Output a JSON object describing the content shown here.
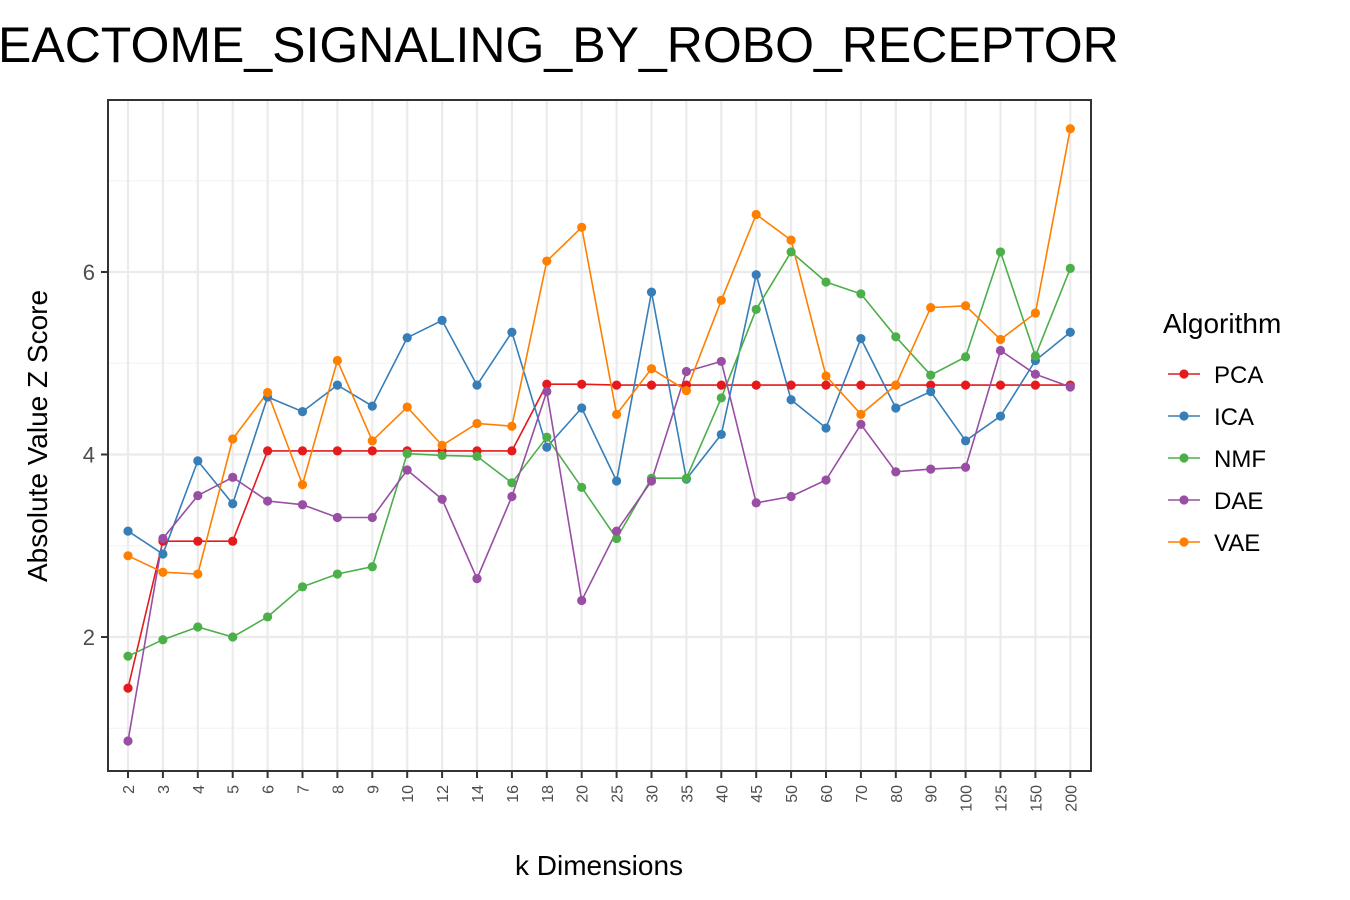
{
  "chart_data": {
    "type": "line",
    "title": "EACTOME_SIGNALING_BY_ROBO_RECEPTOR",
    "xlabel": "k Dimensions",
    "ylabel": "Absolute Value Z Score",
    "categories": [
      "2",
      "3",
      "4",
      "5",
      "6",
      "7",
      "8",
      "9",
      "10",
      "12",
      "14",
      "16",
      "18",
      "20",
      "25",
      "30",
      "35",
      "40",
      "45",
      "50",
      "60",
      "70",
      "80",
      "90",
      "100",
      "125",
      "150",
      "200"
    ],
    "y_ticks": [
      "2",
      "4",
      "6"
    ],
    "ylim": [
      0.7,
      7.9
    ],
    "grid": true,
    "legend": {
      "title": "Algorithm",
      "position": "right"
    },
    "series": [
      {
        "name": "PCA",
        "color": "#e41a1c",
        "values": [
          1.44,
          3.05,
          3.05,
          3.05,
          4.04,
          4.04,
          4.04,
          4.04,
          4.04,
          4.04,
          4.04,
          4.04,
          4.77,
          4.77,
          4.76,
          4.76,
          4.76,
          4.76,
          4.76,
          4.76,
          4.76,
          4.76,
          4.76,
          4.76,
          4.76,
          4.76,
          4.76,
          4.76
        ]
      },
      {
        "name": "ICA",
        "color": "#377eb8",
        "values": [
          3.16,
          2.91,
          3.93,
          3.46,
          4.63,
          4.47,
          4.76,
          4.53,
          5.28,
          5.47,
          4.76,
          5.34,
          4.08,
          4.51,
          3.71,
          5.78,
          3.73,
          4.22,
          5.97,
          4.6,
          4.29,
          5.27,
          4.51,
          4.69,
          4.15,
          4.42,
          5.03,
          5.34
        ]
      },
      {
        "name": "NMF",
        "color": "#4daf4a",
        "values": [
          1.79,
          1.97,
          2.11,
          2.0,
          2.22,
          2.55,
          2.69,
          2.77,
          4.01,
          3.99,
          3.98,
          3.69,
          4.19,
          3.64,
          3.08,
          3.74,
          3.74,
          4.62,
          5.59,
          6.22,
          5.89,
          5.76,
          5.29,
          4.87,
          5.07,
          6.22,
          5.08,
          6.04
        ]
      },
      {
        "name": "DAE",
        "color": "#984ea3",
        "values": [
          0.86,
          3.08,
          3.55,
          3.75,
          3.49,
          3.45,
          3.31,
          3.31,
          3.83,
          3.51,
          2.64,
          3.54,
          4.69,
          2.4,
          3.16,
          3.71,
          4.91,
          5.02,
          3.47,
          3.54,
          3.72,
          4.33,
          3.81,
          3.84,
          3.86,
          5.14,
          4.88,
          4.74
        ]
      },
      {
        "name": "VAE",
        "color": "#ff7f00",
        "values": [
          2.89,
          2.71,
          2.69,
          4.17,
          4.68,
          3.67,
          5.03,
          4.15,
          4.52,
          4.1,
          4.34,
          4.31,
          6.12,
          6.49,
          4.44,
          4.94,
          4.7,
          5.69,
          6.63,
          6.35,
          4.86,
          4.44,
          4.76,
          5.61,
          5.63,
          5.26,
          5.55,
          7.57
        ]
      }
    ]
  }
}
